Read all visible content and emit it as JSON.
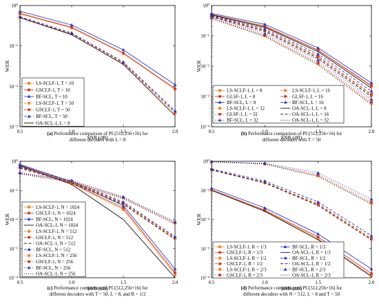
{
  "chart_data": [
    {
      "panel": "a",
      "type": "line",
      "caption": {
        "label": "(a)",
        "text": " Performance comparison of PC(512,256+16) for",
        "line2": "different decoders with L = 8"
      },
      "xlabel": "SNR (dB)",
      "ylabel": "WER",
      "xlim": [
        0.5,
        2.0
      ],
      "ylim_log10": [
        -3,
        0
      ],
      "x_ticks": [
        "0.5",
        "1.0",
        "1.5",
        "2.0"
      ],
      "y_ticks": [
        "10⁰",
        "10⁻¹",
        "10⁻²",
        "10⁻³"
      ],
      "x": [
        0.5,
        1.0,
        1.5,
        2.0
      ],
      "legend_position": "bottom-left",
      "legend_cols": 1,
      "series": [
        {
          "name": "LS-SCLF-1, T = 10",
          "color": "#f28a2c",
          "dash": "solid",
          "marker": "square",
          "values": [
            0.62,
            0.28,
            0.065,
            0.0085
          ]
        },
        {
          "name": "GSCLF-1, T = 10",
          "color": "#d13b2a",
          "dash": "solid",
          "marker": "circle",
          "values": [
            0.64,
            0.29,
            0.067,
            0.0088
          ]
        },
        {
          "name": "BF-SCL, T = 10",
          "color": "#2b38c9",
          "dash": "solid",
          "marker": "triangle",
          "values": [
            0.72,
            0.33,
            0.08,
            0.011
          ]
        },
        {
          "name": "LS-SCLF-1, T = 50",
          "color": "#f28a2c",
          "dash": "dash",
          "marker": "square",
          "values": [
            0.5,
            0.2,
            0.037,
            0.0022
          ]
        },
        {
          "name": "GSCLF-1, T = 50",
          "color": "#d13b2a",
          "dash": "dash",
          "marker": "circle",
          "values": [
            0.51,
            0.2,
            0.038,
            0.0023
          ]
        },
        {
          "name": "BF-SCL, T = 50",
          "color": "#2b38c9",
          "dash": "dash",
          "marker": "triangle",
          "values": [
            0.53,
            0.21,
            0.04,
            0.0025
          ]
        },
        {
          "name": "OA-SCL-1, L = 8",
          "color": "#111111",
          "dash": "solid",
          "marker": "none",
          "values": [
            0.5,
            0.19,
            0.035,
            0.0019
          ]
        }
      ]
    },
    {
      "panel": "b",
      "type": "line",
      "caption": {
        "label": "(b)",
        "text": " Performance comparison of PC(512,256+16) for",
        "line2": "different decoders with T = 50"
      },
      "xlabel": "SNR (dB)",
      "ylabel": "WER",
      "xlim": [
        0.5,
        2.0
      ],
      "ylim_log10": [
        -4,
        0
      ],
      "x_ticks": [
        "0.5",
        "1.0",
        "1.5",
        "2.0"
      ],
      "y_ticks": [
        "10⁰",
        "10⁻¹",
        "10⁻²",
        "10⁻³",
        "10⁻⁴"
      ],
      "x": [
        0.5,
        1.0,
        1.5,
        2.0
      ],
      "legend_position": "bottom",
      "legend_cols": 2,
      "series": [
        {
          "name": "LS-SCLF-1, L = 8",
          "color": "#f28a2c",
          "dash": "solid",
          "marker": "square",
          "values": [
            0.5,
            0.2,
            0.033,
            0.0022
          ]
        },
        {
          "name": "GLSF-1, L = 8",
          "color": "#d13b2a",
          "dash": "solid",
          "marker": "circle",
          "values": [
            0.51,
            0.21,
            0.034,
            0.0023
          ]
        },
        {
          "name": "BF-SCL, L = 8",
          "color": "#2b38c9",
          "dash": "solid",
          "marker": "triangle",
          "values": [
            0.55,
            0.24,
            0.04,
            0.0028
          ]
        },
        {
          "name": "LS-SCLF-1, L = 32",
          "color": "#f28a2c",
          "dash": "dot",
          "marker": "square",
          "values": [
            0.38,
            0.1,
            0.012,
            0.0006
          ]
        },
        {
          "name": "GLSF-1, L = 32",
          "color": "#d13b2a",
          "dash": "dot",
          "marker": "circle",
          "values": [
            0.39,
            0.105,
            0.013,
            0.00065
          ]
        },
        {
          "name": "BF-SCL, L = 32",
          "color": "#2b38c9",
          "dash": "dot",
          "marker": "triangle",
          "values": [
            0.42,
            0.12,
            0.016,
            0.0008
          ]
        },
        {
          "name": "LS-SCLF-1, L = 16",
          "color": "#f28a2c",
          "dash": "dash",
          "marker": "square",
          "values": [
            0.44,
            0.15,
            0.02,
            0.0011
          ]
        },
        {
          "name": "GLSF-1, L = 16",
          "color": "#d13b2a",
          "dash": "dash",
          "marker": "circle",
          "values": [
            0.45,
            0.155,
            0.021,
            0.0012
          ]
        },
        {
          "name": "BF-SCL, L = 16",
          "color": "#2b38c9",
          "dash": "dash",
          "marker": "triangle",
          "values": [
            0.47,
            0.17,
            0.025,
            0.0015
          ]
        },
        {
          "name": "OA-SCL-1, L = 8",
          "color": "#111111",
          "dash": "solid",
          "marker": "none",
          "values": [
            0.49,
            0.19,
            0.03,
            0.0019
          ]
        },
        {
          "name": "OA-SCL-1, L = 16",
          "color": "#111111",
          "dash": "dash",
          "marker": "none",
          "values": [
            0.43,
            0.14,
            0.018,
            0.001
          ]
        },
        {
          "name": "OA-SCL-1, L = 32",
          "color": "#111111",
          "dash": "dot",
          "marker": "none",
          "values": [
            0.37,
            0.095,
            0.011,
            0.00055
          ]
        }
      ]
    },
    {
      "panel": "c",
      "type": "line",
      "caption": {
        "label": "(c)",
        "text": " Performance comparison of PC(512,256+16) for",
        "line2": "different decoders with T = 50, L = 8, and R = 1/2"
      },
      "xlabel": "SNR (dB)",
      "ylabel": "WER",
      "xlim": [
        0.5,
        2.0
      ],
      "ylim_log10": [
        -4,
        0
      ],
      "x_ticks": [
        "0.5",
        "1.0",
        "1.5",
        "2.0"
      ],
      "y_ticks": [
        "10⁰",
        "10⁻¹",
        "10⁻²",
        "10⁻³",
        "10⁻⁴"
      ],
      "x": [
        0.5,
        1.0,
        1.5,
        2.0
      ],
      "legend_position": "bottom-left",
      "legend_cols": 1,
      "series": [
        {
          "name": "LS-SCLF-1, N = 1024",
          "color": "#f28a2c",
          "dash": "solid",
          "marker": "square",
          "values": [
            0.72,
            0.17,
            0.022,
            0.00013
          ]
        },
        {
          "name": "GSCLF-1, N = 1024",
          "color": "#d13b2a",
          "dash": "solid",
          "marker": "circle",
          "values": [
            0.74,
            0.18,
            0.025,
            0.00015
          ]
        },
        {
          "name": "BF-SCL, N = 1024",
          "color": "#2b38c9",
          "dash": "solid",
          "marker": "triangle",
          "values": [
            0.78,
            0.2,
            0.03,
            0.0002
          ]
        },
        {
          "name": "OA-SCL-1, N = 1024",
          "color": "#111111",
          "dash": "solid",
          "marker": "none",
          "values": [
            0.7,
            0.16,
            0.01,
            0.0001
          ]
        },
        {
          "name": "LS-SCLF-1, N = 512",
          "color": "#f28a2c",
          "dash": "dash",
          "marker": "square",
          "values": [
            0.6,
            0.19,
            0.035,
            0.0022
          ]
        },
        {
          "name": "GSCLF-1, N = 512",
          "color": "#d13b2a",
          "dash": "dash",
          "marker": "circle",
          "values": [
            0.62,
            0.2,
            0.037,
            0.0024
          ]
        },
        {
          "name": "OA-SCL-1, N = 512",
          "color": "#111111",
          "dash": "dash",
          "marker": "none",
          "values": [
            0.58,
            0.18,
            0.033,
            0.0021
          ]
        },
        {
          "name": "BF-SCL, N = 512",
          "color": "#2b38c9",
          "dash": "dash",
          "marker": "triangle",
          "values": [
            0.64,
            0.21,
            0.04,
            0.0026
          ]
        },
        {
          "name": "LS-SCLF-1, N = 256",
          "color": "#f28a2c",
          "dash": "dot",
          "marker": "square",
          "values": [
            0.38,
            0.2,
            0.055,
            0.0075
          ]
        },
        {
          "name": "GSCLF-1, N = 256",
          "color": "#d13b2a",
          "dash": "dot",
          "marker": "circle",
          "values": [
            0.39,
            0.21,
            0.057,
            0.0078
          ]
        },
        {
          "name": "BF-SCL, N = 256",
          "color": "#2b38c9",
          "dash": "dot",
          "marker": "triangle",
          "values": [
            0.41,
            0.22,
            0.06,
            0.0085
          ]
        },
        {
          "name": "OA-SCL-1, N = 256",
          "color": "#111111",
          "dash": "dot",
          "marker": "none",
          "values": [
            0.37,
            0.19,
            0.052,
            0.007
          ]
        }
      ]
    },
    {
      "panel": "d",
      "type": "line",
      "caption": {
        "label": "(d)",
        "text": " Performance comparison of PC(512,256+16) for",
        "line2": "different decoders with N = 512, L = 8 and T = 50"
      },
      "xlabel": "SNR (dB)",
      "ylabel": "WER",
      "xlim": [
        0.5,
        2.0
      ],
      "ylim_log10": [
        -4,
        0
      ],
      "x_ticks": [
        "0.5",
        "1.0",
        "1.5",
        "2.0"
      ],
      "y_ticks": [
        "10⁰",
        "10⁻¹",
        "10⁻²",
        "10⁻³",
        "10⁻⁴"
      ],
      "x": [
        0.5,
        1.0,
        1.5,
        2.0
      ],
      "legend_position": "bottom",
      "legend_cols": 2,
      "series": [
        {
          "name": "LS-SCLF-1, R = 1/3",
          "color": "#f28a2c",
          "dash": "solid",
          "marker": "square",
          "values": [
            0.1,
            0.02,
            0.0022,
            0.00012
          ]
        },
        {
          "name": "GSCLF-1, R = 1/3",
          "color": "#d13b2a",
          "dash": "solid",
          "marker": "circle",
          "values": [
            0.105,
            0.021,
            0.0025,
            0.00014
          ]
        },
        {
          "name": "LS-SCLF-1, R = 1/2",
          "color": "#f28a2c",
          "dash": "dash",
          "marker": "square",
          "values": [
            0.5,
            0.18,
            0.032,
            0.0021
          ]
        },
        {
          "name": "GSCLF-1, R = 1/2",
          "color": "#d13b2a",
          "dash": "dash",
          "marker": "circle",
          "values": [
            0.52,
            0.19,
            0.034,
            0.0023
          ]
        },
        {
          "name": "LS-SCLF-1, R = 2/3",
          "color": "#f28a2c",
          "dash": "dot",
          "marker": "square",
          "values": [
            0.95,
            0.8,
            0.32,
            0.036
          ]
        },
        {
          "name": "GSCLF-1, R = 2/3",
          "color": "#d13b2a",
          "dash": "dot",
          "marker": "circle",
          "values": [
            0.96,
            0.82,
            0.34,
            0.04
          ]
        },
        {
          "name": "BF-SCL, R = 1/3",
          "color": "#2b38c9",
          "dash": "solid",
          "marker": "triangle",
          "values": [
            0.12,
            0.025,
            0.0032,
            0.0002
          ]
        },
        {
          "name": "OA-SCL-1, R = 1/3",
          "color": "#111111",
          "dash": "solid",
          "marker": "none",
          "values": [
            0.1,
            0.019,
            0.002,
            0.00011
          ]
        },
        {
          "name": "BF-SCL, R = 1/2",
          "color": "#2b38c9",
          "dash": "dash",
          "marker": "triangle",
          "values": [
            0.55,
            0.21,
            0.04,
            0.0028
          ]
        },
        {
          "name": "OA-SCL-1, R = 1/2",
          "color": "#111111",
          "dash": "dash",
          "marker": "none",
          "values": [
            0.5,
            0.18,
            0.03,
            0.002
          ]
        },
        {
          "name": "BF-SCL, R = 2/3",
          "color": "#2b38c9",
          "dash": "dot",
          "marker": "triangle",
          "values": [
            0.97,
            0.86,
            0.4,
            0.05
          ]
        },
        {
          "name": "OA-SCL-1, R = 2/3",
          "color": "#111111",
          "dash": "dot",
          "marker": "none",
          "values": [
            0.95,
            0.8,
            0.3,
            0.034
          ]
        }
      ]
    }
  ]
}
